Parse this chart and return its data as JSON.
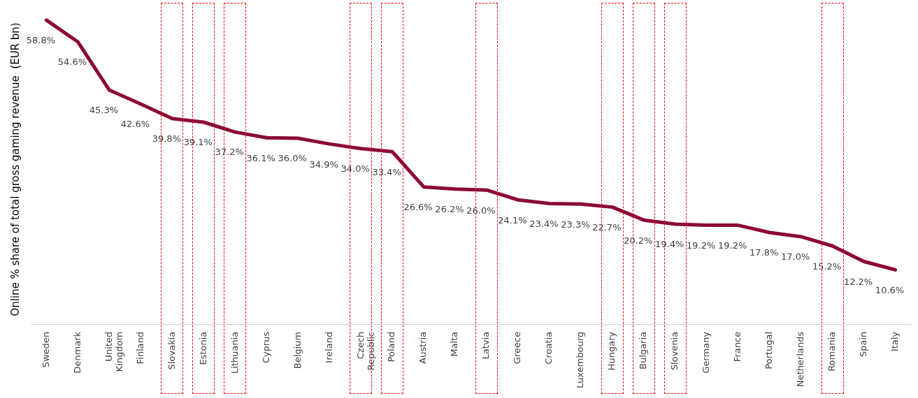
{
  "chart_data": {
    "type": "line",
    "ylabel": "Online % share of total gross gaming revenue  (EUR bn)",
    "categories": [
      "Sweden",
      "Denmark",
      "United Kingdom",
      "Finland",
      "Slovakia",
      "Estonia",
      "Lithuania",
      "Cyprus",
      "Belgium",
      "Ireland",
      "Czech Republic",
      "Poland",
      "Austria",
      "Malta",
      "Latvia",
      "Greece",
      "Croatia",
      "Luxembourg",
      "Hungary",
      "Bulgaria",
      "Slovenia",
      "Germany",
      "France",
      "Portugal",
      "Netherlands",
      "Romania",
      "Spain",
      "Italy"
    ],
    "series": [
      {
        "color": "#8b0a32",
        "values": [
          58.8,
          54.6,
          45.3,
          42.6,
          39.8,
          39.1,
          37.2,
          36.1,
          36.0,
          34.9,
          34.0,
          33.4,
          26.6,
          26.2,
          26.0,
          24.1,
          23.4,
          23.3,
          22.7,
          20.2,
          19.4,
          19.2,
          19.2,
          17.8,
          17.0,
          15.2,
          12.2,
          10.6
        ],
        "value_labels": [
          "58.8%",
          "54.6%",
          "45.3%",
          "42.6%",
          "39.8%",
          "39.1%",
          "37.2%",
          "36.1%",
          "36.0%",
          "34.9%",
          "34.0%",
          "33.4%",
          "26.6%",
          "26.2%",
          "26.0%",
          "24.1%",
          "23.4%",
          "23.3%",
          "22.7%",
          "20.2%",
          "19.4%",
          "19.2%",
          "19.2%",
          "17.8%",
          "17.0%",
          "15.2%",
          "12.2%",
          "10.6%"
        ]
      }
    ],
    "tick_labels": "x",
    "grid": false,
    "legend": false,
    "marker": "none",
    "line_style": "solid"
  }
}
